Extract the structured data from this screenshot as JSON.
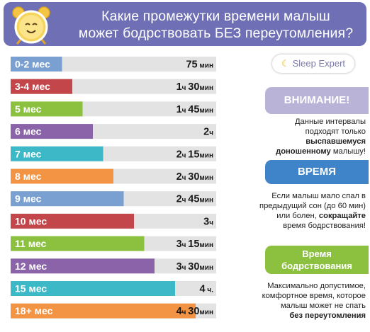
{
  "header": {
    "title_line1": "Какие промежутки времени малыш",
    "title_line2": "может бодрствовать БЕЗ переутомления?"
  },
  "logo": {
    "text": "Sleep Expert"
  },
  "chart_data": {
    "type": "bar",
    "orientation": "horizontal",
    "unit": "minutes",
    "xlim": [
      0,
      300
    ],
    "categories": [
      "0-2 мес",
      "3-4 мес",
      "5 мес",
      "6 мес",
      "7 мес",
      "8 мес",
      "9 мес",
      "10 мес",
      "11 мес",
      "12 мес",
      "15 мес",
      "18+ мес"
    ],
    "values": [
      75,
      90,
      105,
      120,
      135,
      150,
      165,
      180,
      195,
      210,
      240,
      270
    ],
    "value_labels": [
      {
        "big": "75",
        "small": " мин"
      },
      {
        "big": "1",
        "small": "ч ",
        "big2": "30",
        "small2": "мин"
      },
      {
        "big": "1",
        "small": "ч ",
        "big2": "45",
        "small2": "мин"
      },
      {
        "big": "2",
        "small": "ч"
      },
      {
        "big": "2",
        "small": "ч ",
        "big2": "15",
        "small2": "мин"
      },
      {
        "big": "2",
        "small": "ч ",
        "big2": "30",
        "small2": "мин"
      },
      {
        "big": "2",
        "small": "ч ",
        "big2": "45",
        "small2": "мин"
      },
      {
        "big": "3",
        "small": "ч"
      },
      {
        "big": "3",
        "small": "ч ",
        "big2": "15",
        "small2": "мин"
      },
      {
        "big": "3",
        "small": "ч ",
        "big2": "30",
        "small2": "мин"
      },
      {
        "big": "4",
        "small": " ч."
      },
      {
        "big": "4",
        "small": "ч ",
        "big2": "30",
        "small2": "мин"
      }
    ],
    "colors": [
      "#7aa0d2",
      "#c2464a",
      "#8cc13f",
      "#8a63a8",
      "#3cb8c6",
      "#f29444",
      "#7aa0d2",
      "#c2464a",
      "#8cc13f",
      "#8a63a8",
      "#3cb8c6",
      "#f29444"
    ],
    "track_color": "#e3e3e3"
  },
  "sidebar": {
    "warning_label": "ВНИМАНИЕ!",
    "warning_note": {
      "l1": "Данные интервалы",
      "l2": "подходят только",
      "l3": "выспавшемуся",
      "l4a": "доношенному",
      "l4b": " малышу!"
    },
    "time_label": "ВРЕМЯ",
    "time_note": {
      "l1": "Если малыш мало спал в",
      "l2": "предыдущий сон (до 60 мин)",
      "l3a": "или болен, ",
      "l3b": "сокращайте",
      "l4": "время бодрствования!"
    },
    "wake_label_line1": "Время",
    "wake_label_line2": "бодрствования",
    "wake_note": {
      "l1": "Максимально допустимое,",
      "l2": "комфортное  время, которое",
      "l3": "малыш может не спать",
      "l4": "без переутомления"
    }
  }
}
